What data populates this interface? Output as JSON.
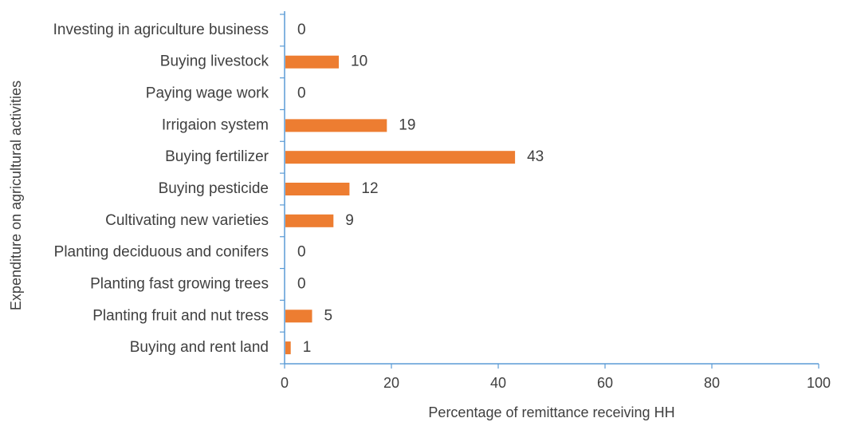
{
  "chart_data": {
    "type": "bar",
    "orientation": "horizontal",
    "categories": [
      "Investing in agriculture business",
      "Buying livestock",
      "Paying wage work",
      "Irrigaion system",
      "Buying fertilizer",
      "Buying pesticide",
      "Cultivating new varieties",
      "Planting deciduous and conifers",
      "Planting fast growing trees",
      "Planting fruit and nut tress",
      "Buying and rent land"
    ],
    "values": [
      0,
      10,
      0,
      19,
      43,
      12,
      9,
      0,
      0,
      5,
      1
    ],
    "xlabel": "Percentage of remittance receiving HH",
    "ylabel": "Expenditure on agricultural activities",
    "xlim": [
      0,
      100
    ],
    "xticks": [
      0,
      20,
      40,
      60,
      80,
      100
    ],
    "grid": false,
    "legend": "none",
    "bar_color": "#ED7D31",
    "axis_color": "#5B9BD5"
  }
}
